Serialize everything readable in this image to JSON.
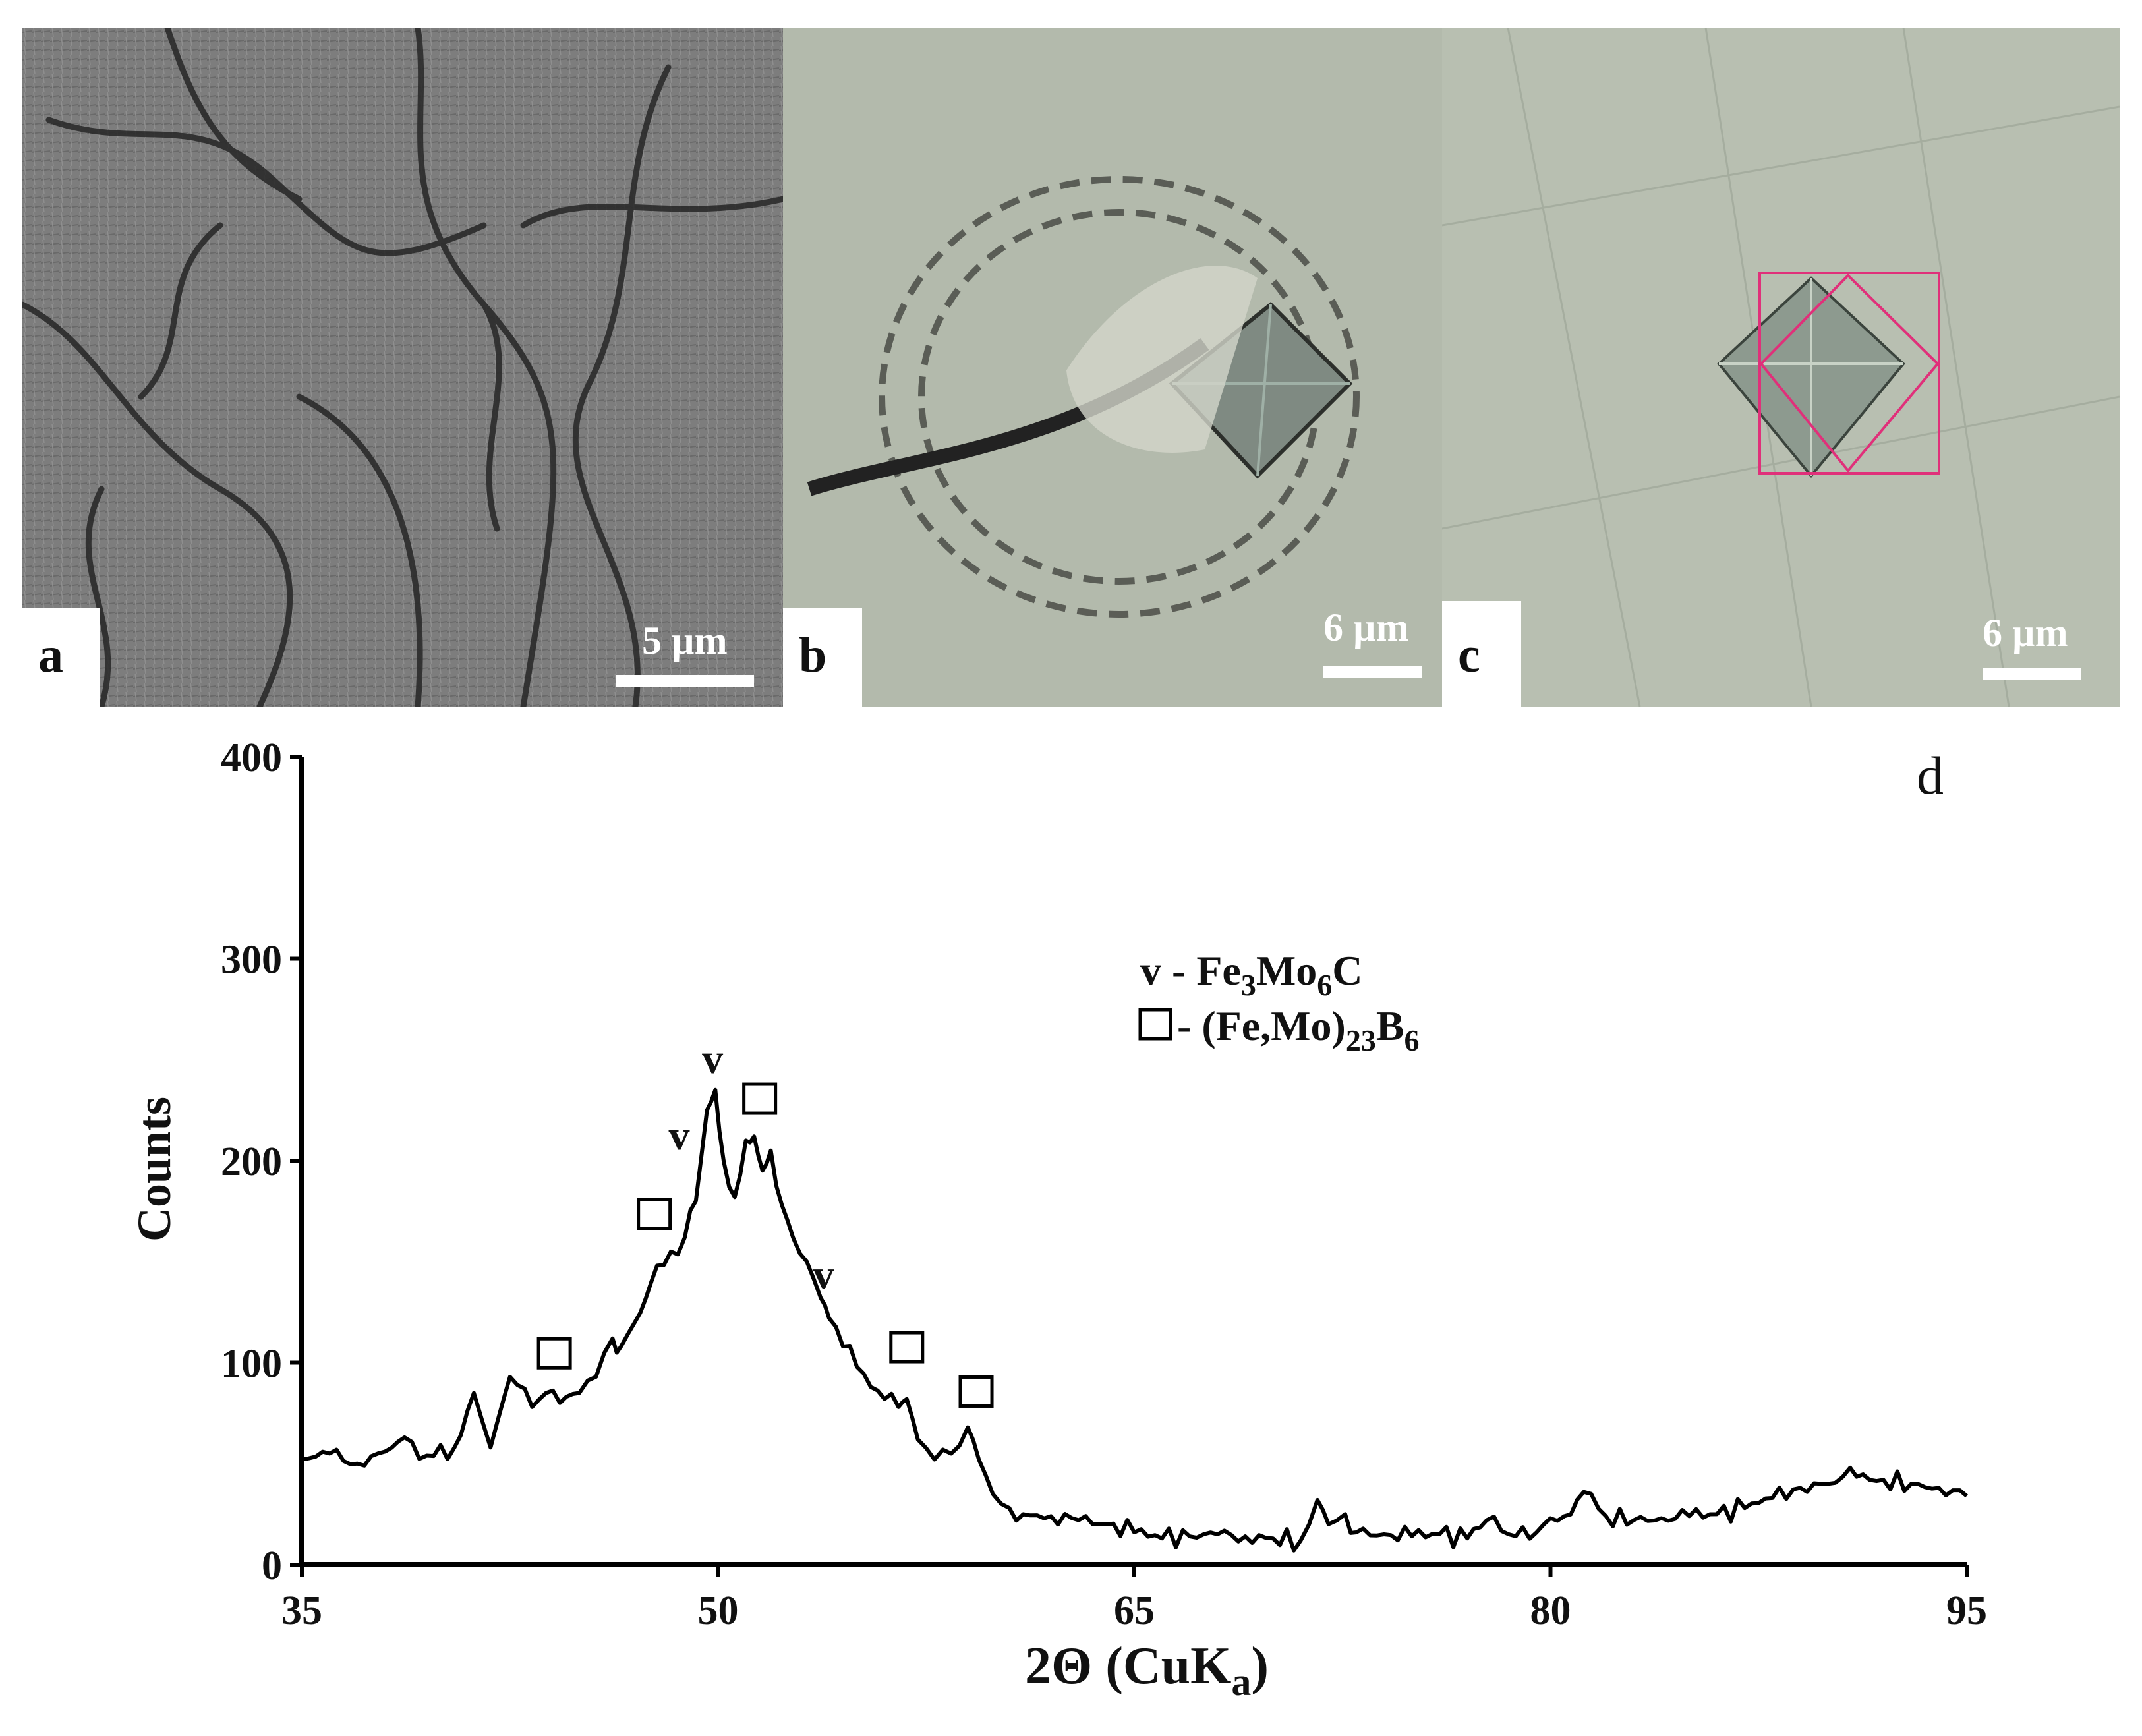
{
  "figure": {
    "panels": [
      {
        "letter": "a",
        "scale_label": "5 µm",
        "kind": "SEM micrograph (dendritic eutectic structure)"
      },
      {
        "letter": "b",
        "scale_label": "6 µm",
        "kind": "optical micrograph with microindentation"
      },
      {
        "letter": "c",
        "scale_label": "6 µm",
        "kind": "optical micrograph with microindentation"
      }
    ],
    "colors": {
      "sem_gray": "#7a7a7a",
      "optical_b": "#b8bfb0",
      "optical_c": "#b9c0b2",
      "indent_frame": "#e0307a",
      "curve": "#000000"
    }
  },
  "chart_data": {
    "type": "line",
    "panel_letter": "d",
    "title": "",
    "xlabel": "2Θ (CuK",
    "xlabel_sub": "a",
    "xlabel_close": ")",
    "ylabel": "Counts",
    "xlim": [
      35,
      95
    ],
    "ylim": [
      0,
      400
    ],
    "xticks": [
      35,
      50,
      65,
      80,
      95
    ],
    "yticks": [
      0,
      100,
      200,
      300,
      400
    ],
    "grid": false,
    "legend": {
      "placement": "upper-center-right",
      "entries": [
        {
          "marker": "v",
          "parts": [
            [
              "v - Fe",
              ""
            ],
            [
              "3",
              "sub"
            ],
            [
              "Mo",
              ""
            ],
            [
              "6",
              "sub"
            ],
            [
              "C",
              ""
            ]
          ]
        },
        {
          "marker": "□",
          "parts": [
            [
              " - (Fe,Mo)",
              ""
            ],
            [
              "23",
              "sub"
            ],
            [
              "B",
              ""
            ],
            [
              "6",
              "sub"
            ]
          ]
        }
      ]
    },
    "series": [
      {
        "x": [
          35,
          36,
          37,
          38,
          38.7,
          39.5,
          40.5,
          41.2,
          41.8,
          42.5,
          43.3,
          43.8,
          44.3,
          45,
          45.6,
          46.2,
          46.5,
          47,
          47.4,
          47.8,
          48.3,
          48.8,
          49.2,
          49.6,
          49.9,
          50.2,
          50.6,
          51.0,
          51.3,
          51.6,
          51.9,
          52.3,
          52.7,
          53.2,
          53.7,
          54.0,
          54.5,
          55.0,
          55.5,
          56.0,
          56.5,
          56.8,
          57.2,
          57.8,
          58.4,
          59.0,
          59.4,
          59.9,
          60.5,
          61,
          62,
          63,
          64,
          65,
          66,
          67,
          68,
          69,
          70,
          71,
          71.6,
          72,
          72.6,
          73,
          74,
          75,
          76,
          77,
          77.7,
          78.5,
          79.5,
          80,
          80.5,
          81.2,
          82,
          83,
          84,
          85,
          86,
          87,
          88,
          89,
          90,
          90.8,
          91.5,
          92,
          93,
          94,
          95
        ],
        "y": [
          52,
          55,
          50,
          56,
          63,
          54,
          58,
          85,
          58,
          93,
          78,
          85,
          80,
          85,
          93,
          112,
          108,
          120,
          132,
          148,
          155,
          162,
          180,
          225,
          235,
          200,
          182,
          210,
          212,
          195,
          205,
          178,
          162,
          150,
          132,
          122,
          108,
          98,
          88,
          82,
          78,
          82,
          62,
          52,
          55,
          68,
          52,
          35,
          28,
          25,
          24,
          22,
          20,
          16,
          13,
          14,
          15,
          14,
          13,
          12,
          32,
          20,
          25,
          16,
          15,
          14,
          15,
          13,
          22,
          15,
          16,
          23,
          24,
          36,
          24,
          22,
          23,
          24,
          25,
          28,
          33,
          38,
          40,
          48,
          42,
          42,
          40,
          38,
          34
        ]
      }
    ],
    "annotations": [
      {
        "label": "v",
        "x": 49.8,
        "y": 250
      },
      {
        "label": "v",
        "x": 48.6,
        "y": 212
      },
      {
        "label": "v",
        "x": 53.8,
        "y": 143
      },
      {
        "label": "□",
        "x": 44.1,
        "y": 104
      },
      {
        "label": "□",
        "x": 47.7,
        "y": 173
      },
      {
        "label": "□",
        "x": 51.5,
        "y": 230
      },
      {
        "label": "□",
        "x": 56.8,
        "y": 107
      },
      {
        "label": "□",
        "x": 59.3,
        "y": 85
      }
    ]
  }
}
